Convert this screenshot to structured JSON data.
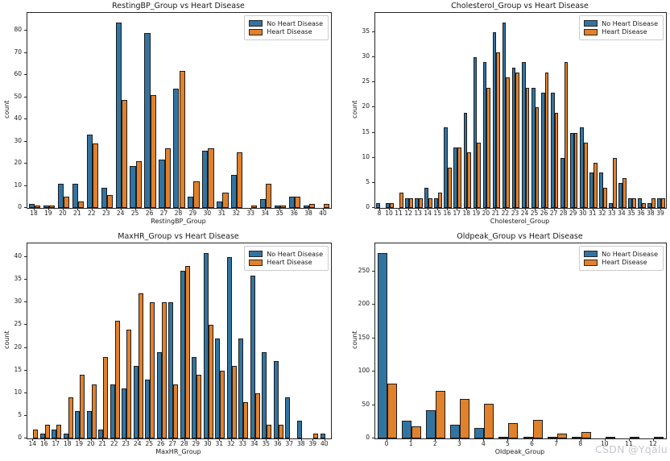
{
  "page": {
    "watermark": "CSDN @Yqalu"
  },
  "colors": {
    "no_heart_disease": "#3274a1",
    "heart_disease": "#e1812c",
    "bar_edge": "#1c1c1c",
    "spine": "#262626"
  },
  "legend": {
    "items": [
      "No Heart Disease",
      "Heart Disease"
    ]
  },
  "chart_data": [
    {
      "type": "bar",
      "title": "RestingBP_Group vs Heart Disease",
      "xlabel": "RestingBP_Group",
      "ylabel": "count",
      "legend_position": "upper right",
      "grid": false,
      "yticks": [
        0,
        10,
        20,
        30,
        40,
        50,
        60,
        70,
        80
      ],
      "ylim": [
        0,
        88.2
      ],
      "categories": [
        "18",
        "19",
        "20",
        "21",
        "22",
        "23",
        "24",
        "25",
        "26",
        "27",
        "28",
        "29",
        "30",
        "31",
        "32",
        "33",
        "34",
        "35",
        "36",
        "38",
        "40"
      ],
      "series": [
        {
          "name": "No Heart Disease",
          "color": "#3274a1",
          "values": [
            2,
            1,
            11,
            11,
            33,
            9,
            84,
            19,
            79,
            22,
            54,
            5,
            26,
            3,
            15,
            0,
            4,
            1,
            5,
            1,
            0
          ]
        },
        {
          "name": "Heart Disease",
          "color": "#e1812c",
          "values": [
            1,
            1,
            5,
            3,
            29,
            6,
            49,
            21,
            51,
            27,
            62,
            12,
            27,
            7,
            25,
            1,
            11,
            1,
            5,
            2,
            2
          ]
        }
      ]
    },
    {
      "type": "bar",
      "title": "Cholesterol_Group vs Heart Disease",
      "xlabel": "Cholesterol_Group",
      "ylabel": "count",
      "legend_position": "upper right",
      "grid": false,
      "yticks": [
        0,
        5,
        10,
        15,
        20,
        25,
        30,
        35
      ],
      "ylim": [
        0,
        38.85
      ],
      "categories": [
        "8",
        "10",
        "11",
        "12",
        "13",
        "14",
        "15",
        "16",
        "17",
        "18",
        "19",
        "20",
        "21",
        "22",
        "23",
        "24",
        "25",
        "26",
        "27",
        "28",
        "29",
        "30",
        "31",
        "32",
        "33",
        "34",
        "35",
        "36",
        "38",
        "39"
      ],
      "series": [
        {
          "name": "No Heart Disease",
          "color": "#3274a1",
          "values": [
            1,
            1,
            0,
            2,
            2,
            4,
            2,
            16,
            12,
            19,
            30,
            29,
            35,
            37,
            28,
            29,
            24,
            23,
            23,
            10,
            15,
            16,
            7,
            7,
            1,
            5,
            2,
            2,
            1,
            2
          ]
        },
        {
          "name": "Heart Disease",
          "color": "#e1812c",
          "values": [
            0,
            1,
            3,
            2,
            2,
            2,
            3,
            8,
            12,
            11,
            13,
            24,
            31,
            26,
            27,
            24,
            20,
            27,
            19,
            29,
            15,
            13,
            9,
            4,
            10,
            6,
            2,
            1,
            2,
            2
          ]
        }
      ]
    },
    {
      "type": "bar",
      "title": "MaxHR_Group vs Heart Disease",
      "xlabel": "MaxHR_Group",
      "ylabel": "count",
      "legend_position": "upper right",
      "grid": false,
      "yticks": [
        0,
        5,
        10,
        15,
        20,
        25,
        30,
        35,
        40
      ],
      "ylim": [
        0,
        43.05
      ],
      "categories": [
        "14",
        "16",
        "17",
        "18",
        "19",
        "20",
        "21",
        "22",
        "23",
        "24",
        "25",
        "26",
        "27",
        "28",
        "29",
        "30",
        "31",
        "32",
        "33",
        "34",
        "35",
        "36",
        "37",
        "38",
        "39",
        "40"
      ],
      "series": [
        {
          "name": "No Heart Disease",
          "color": "#3274a1",
          "values": [
            0,
            1,
            2,
            1,
            6,
            6,
            2,
            12,
            11,
            16,
            13,
            19,
            30,
            37,
            18,
            41,
            22,
            40,
            22,
            36,
            19,
            17,
            9,
            4,
            0,
            1
          ]
        },
        {
          "name": "Heart Disease",
          "color": "#e1812c",
          "values": [
            2,
            3,
            3,
            9,
            14,
            12,
            18,
            26,
            24,
            32,
            30,
            30,
            12,
            38,
            14,
            25,
            15,
            16,
            8,
            10,
            3,
            3,
            0,
            0,
            1,
            0
          ]
        }
      ]
    },
    {
      "type": "bar",
      "title": "Oldpeak_Group vs Heart Disease",
      "xlabel": "Oldpeak_Group",
      "ylabel": "count",
      "legend_position": "upper right",
      "grid": false,
      "yticks": [
        0,
        50,
        100,
        150,
        200,
        250
      ],
      "ylim": [
        0,
        291.9
      ],
      "categories": [
        "0",
        "1",
        "2",
        "3",
        "4",
        "5",
        "6",
        "7",
        "8",
        "10",
        "11",
        "12"
      ],
      "series": [
        {
          "name": "No Heart Disease",
          "color": "#3274a1",
          "values": [
            278,
            27,
            42,
            20,
            16,
            2,
            3,
            2,
            2,
            0,
            0,
            0
          ]
        },
        {
          "name": "Heart Disease",
          "color": "#e1812c",
          "values": [
            82,
            18,
            71,
            59,
            52,
            23,
            28,
            7,
            10,
            2,
            2,
            2
          ]
        }
      ]
    }
  ]
}
